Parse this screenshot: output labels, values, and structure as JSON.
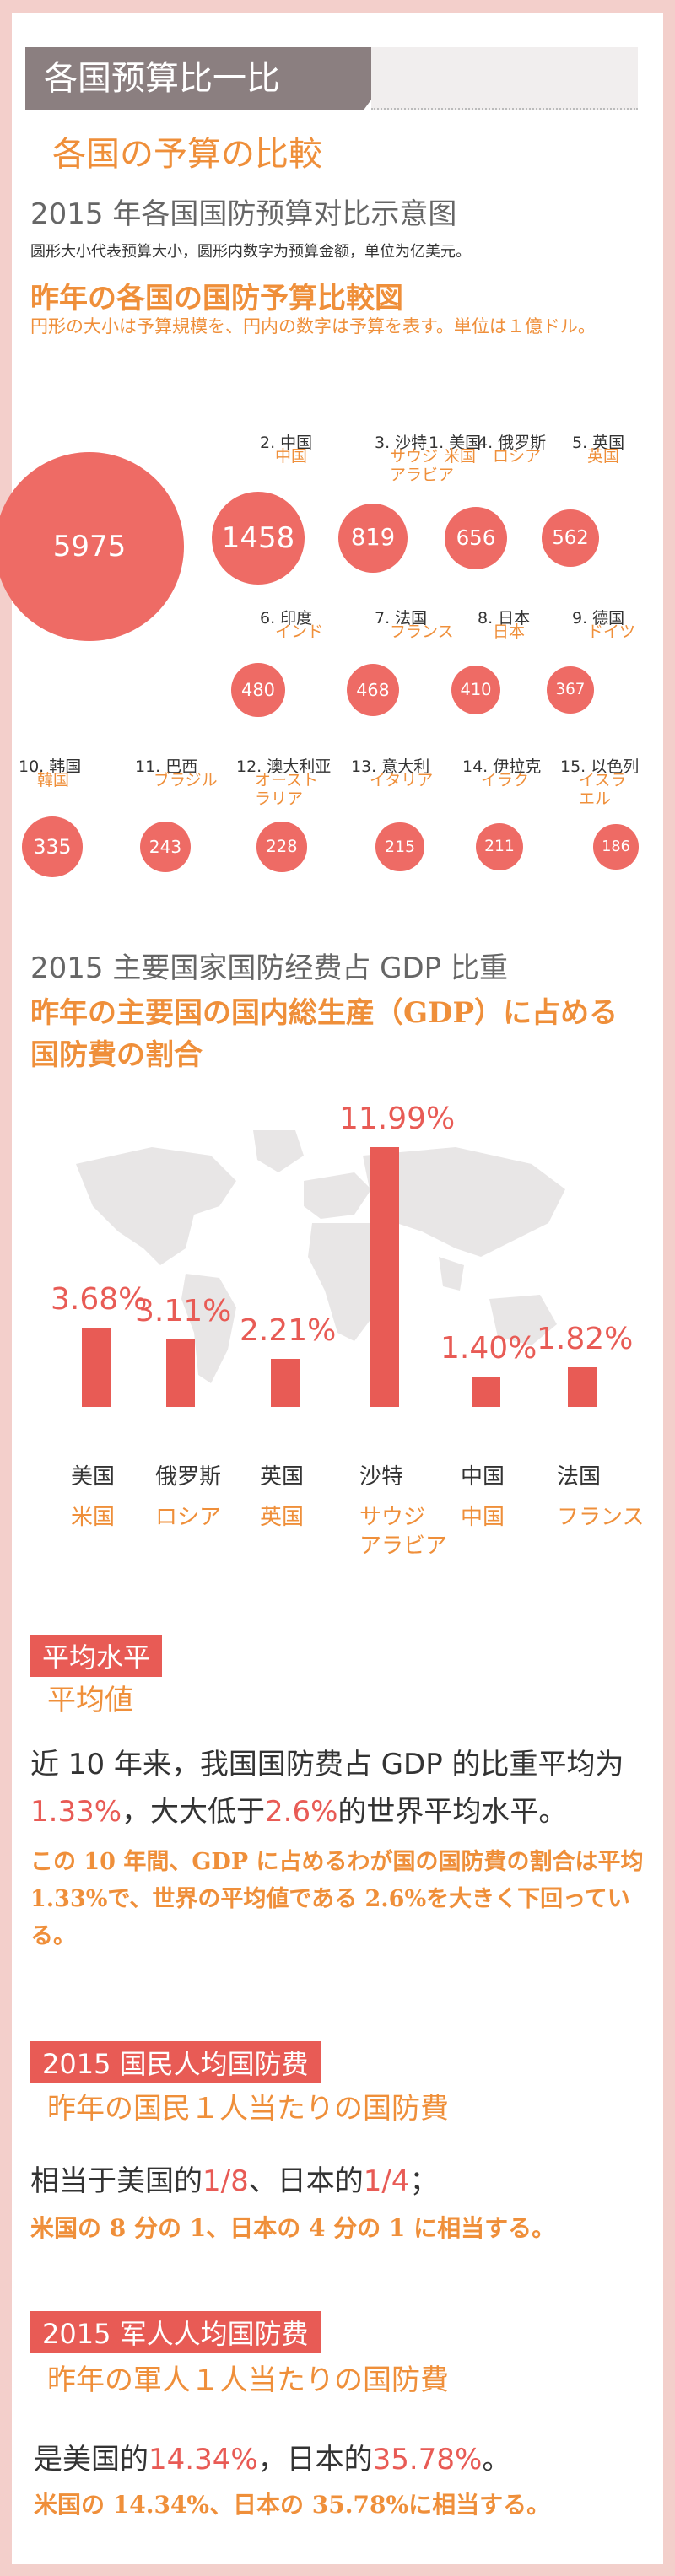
{
  "header": {
    "title": "各国预算比一比",
    "subtitle_jp": "各国の予算の比較"
  },
  "section1": {
    "title": "2015 年各国国防预算对比示意图",
    "desc": "圆形大小代表预算大小，圆形内数字为预算金额，单位为亿美元。",
    "title_jp": "昨年の各国の国防予算比較図",
    "desc_jp": "円形の大小は予算規模を、円内の数字は予算を表す。単位は１億ドル。",
    "countries": [
      {
        "rank_cn": "1. 美国",
        "jp": "米国",
        "value": "5975"
      },
      {
        "rank_cn": "2. 中国",
        "jp": "中国",
        "value": "1458"
      },
      {
        "rank_cn": "3. 沙特",
        "jp": "サウジ\nアラビア",
        "value": "819"
      },
      {
        "rank_cn": "4. 俄罗斯",
        "jp": "ロシア",
        "value": "656"
      },
      {
        "rank_cn": "5. 英国",
        "jp": "英国",
        "value": "562"
      },
      {
        "rank_cn": "6. 印度",
        "jp": "インド",
        "value": "480"
      },
      {
        "rank_cn": "7. 法国",
        "jp": "フランス",
        "value": "468"
      },
      {
        "rank_cn": "8. 日本",
        "jp": "日本",
        "value": "410"
      },
      {
        "rank_cn": "9. 德国",
        "jp": "ドイツ",
        "value": "367"
      },
      {
        "rank_cn": "10. 韩国",
        "jp": "韓国",
        "value": "335"
      },
      {
        "rank_cn": "11. 巴西",
        "jp": "ブラジル",
        "value": "243"
      },
      {
        "rank_cn": "12. 澳大利亚",
        "jp": "オースト\nラリア",
        "value": "228"
      },
      {
        "rank_cn": "13. 意大利",
        "jp": "イタリア",
        "value": "215"
      },
      {
        "rank_cn": "14. 伊拉克",
        "jp": "イラク",
        "value": "211"
      },
      {
        "rank_cn": "15. 以色列",
        "jp": "イスラ\nエル",
        "value": "186"
      }
    ]
  },
  "section2": {
    "title": "2015 主要国家国防经费占 GDP 比重",
    "title_jp": "昨年の主要国の国内総生産（GDP）に占める国防費の割合"
  },
  "chart_data": {
    "type": "bar",
    "categories": [
      "美国",
      "俄罗斯",
      "英国",
      "沙特",
      "中国",
      "法国"
    ],
    "categories_jp": [
      "米国",
      "ロシア",
      "英国",
      "サウジ\nアラビア",
      "中国",
      "フランス"
    ],
    "values": [
      3.68,
      3.11,
      2.21,
      11.99,
      1.4,
      1.82
    ],
    "labels": [
      "3.68%",
      "3.11%",
      "2.21%",
      "11.99%",
      "1.40%",
      "1.82%"
    ],
    "title": "2015 主要国家国防经费占 GDP 比重",
    "ylim": [
      0,
      12
    ]
  },
  "section3": {
    "tag": "平均水平",
    "tag_jp": "平均値",
    "text_a": "近 10 年来，我国国防费占 GDP 的比重平均为",
    "val1": "1.33%",
    "text_b": "，大大低于",
    "val2": "2.6%",
    "text_c": "的世界平均水平。",
    "jp": "この 10 年間、GDP に占めるわが国の国防費の割合は平均1.33%で、世界の平均値である 2.6%を大きく下回っている。"
  },
  "section4": {
    "tag": "2015 国民人均国防费",
    "tag_jp": "昨年の国民１人当たりの国防費",
    "text_a": "相当于美国的",
    "val1": "1/8",
    "text_b": "、日本的",
    "val2": "1/4",
    "text_c": "；",
    "jp": "米国の 8 分の 1、日本の 4 分の 1 に相当する。"
  },
  "section5": {
    "tag": "2015 军人人均国防费",
    "tag_jp": "昨年の軍人１人当たりの国防費",
    "text_a": "是美国的",
    "val1": "14.34%",
    "text_b": "，日本的",
    "val2": "35.78%",
    "text_c": "。",
    "jp": "米国の 14.34%、日本の 35.78%に相当する。"
  },
  "colors": {
    "accent": "#e85b55",
    "orange": "#ef8f3a",
    "circle": "#ee6b65",
    "border": "#f3cfcb",
    "header": "#8b7f80"
  }
}
